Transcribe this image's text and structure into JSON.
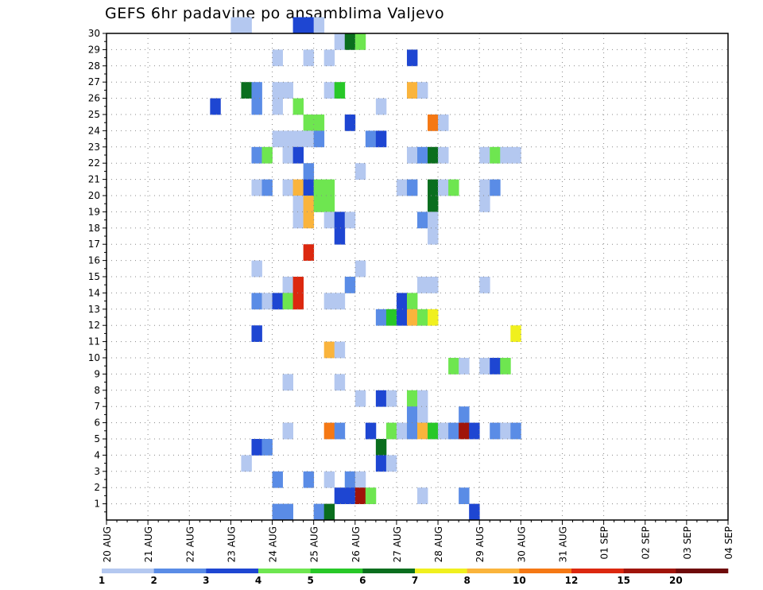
{
  "chart_data": {
    "type": "heatmap",
    "title": "GEFS 6hr padavine po ansamblima Valjevo",
    "x_ticks": [
      "20 AUG",
      "21 AUG",
      "22 AUG",
      "23 AUG",
      "24 AUG",
      "25 AUG",
      "26 AUG",
      "27 AUG",
      "28 AUG",
      "29 AUG",
      "30 AUG",
      "31 AUG",
      "01 SEP",
      "02 SEP",
      "03 SEP",
      "04 SEP"
    ],
    "y_ticks": [
      1,
      2,
      3,
      4,
      5,
      6,
      7,
      8,
      9,
      10,
      11,
      12,
      13,
      14,
      15,
      16,
      17,
      18,
      19,
      20,
      21,
      22,
      23,
      24,
      25,
      26,
      27,
      28,
      29,
      30
    ],
    "ylim": [
      0,
      30
    ],
    "xlim_days": [
      0,
      15
    ],
    "step_hours": 6,
    "grid": true,
    "legend_position": "bottom",
    "levels": [
      "1",
      "2",
      "3",
      "4",
      "5",
      "6",
      "7",
      "8",
      "10",
      "12",
      "15",
      "20"
    ],
    "colors": [
      "#b4c8f0",
      "#5a8ce6",
      "#1e46d2",
      "#6ee650",
      "#28c828",
      "#0a6e1e",
      "#f0f01e",
      "#fab43c",
      "#f57814",
      "#dc280f",
      "#a0140a",
      "#6e0a0a"
    ],
    "cells": [
      [
        30,
        12,
        0
      ],
      [
        30,
        13,
        0
      ],
      [
        30,
        18,
        2
      ],
      [
        30,
        19,
        2
      ],
      [
        30,
        20,
        0
      ],
      [
        29,
        22,
        0
      ],
      [
        29,
        23,
        5
      ],
      [
        29,
        24,
        3
      ],
      [
        28,
        16,
        0
      ],
      [
        28,
        19,
        0
      ],
      [
        28,
        21,
        0
      ],
      [
        28,
        29,
        2
      ],
      [
        26,
        13,
        5
      ],
      [
        26,
        14,
        1
      ],
      [
        26,
        16,
        0
      ],
      [
        26,
        17,
        0
      ],
      [
        26,
        21,
        0
      ],
      [
        26,
        22,
        4
      ],
      [
        26,
        29,
        7
      ],
      [
        26,
        30,
        0
      ],
      [
        25,
        10,
        2
      ],
      [
        25,
        14,
        1
      ],
      [
        25,
        16,
        0
      ],
      [
        25,
        18,
        3
      ],
      [
        25,
        26,
        0
      ],
      [
        24,
        19,
        3
      ],
      [
        24,
        20,
        3
      ],
      [
        24,
        23,
        2
      ],
      [
        24,
        31,
        8
      ],
      [
        24,
        32,
        0
      ],
      [
        23,
        16,
        0
      ],
      [
        23,
        17,
        0
      ],
      [
        23,
        18,
        0
      ],
      [
        23,
        19,
        0
      ],
      [
        23,
        20,
        1
      ],
      [
        23,
        25,
        1
      ],
      [
        23,
        26,
        2
      ],
      [
        22,
        14,
        1
      ],
      [
        22,
        15,
        3
      ],
      [
        22,
        17,
        0
      ],
      [
        22,
        18,
        2
      ],
      [
        22,
        29,
        0
      ],
      [
        22,
        30,
        1
      ],
      [
        22,
        31,
        5
      ],
      [
        22,
        32,
        0
      ],
      [
        22,
        36,
        0
      ],
      [
        22,
        37,
        3
      ],
      [
        22,
        38,
        0
      ],
      [
        22,
        39,
        0
      ],
      [
        21,
        19,
        1
      ],
      [
        21,
        24,
        0
      ],
      [
        20,
        14,
        0
      ],
      [
        20,
        15,
        1
      ],
      [
        20,
        17,
        0
      ],
      [
        20,
        18,
        7
      ],
      [
        20,
        19,
        2
      ],
      [
        20,
        20,
        3
      ],
      [
        20,
        21,
        3
      ],
      [
        20,
        28,
        0
      ],
      [
        20,
        29,
        1
      ],
      [
        20,
        31,
        5
      ],
      [
        20,
        32,
        0
      ],
      [
        20,
        33,
        3
      ],
      [
        20,
        36,
        0
      ],
      [
        20,
        37,
        1
      ],
      [
        19,
        18,
        0
      ],
      [
        19,
        19,
        7
      ],
      [
        19,
        20,
        3
      ],
      [
        19,
        21,
        3
      ],
      [
        19,
        31,
        5
      ],
      [
        19,
        36,
        0
      ],
      [
        18,
        18,
        0
      ],
      [
        18,
        19,
        7
      ],
      [
        18,
        21,
        0
      ],
      [
        18,
        22,
        2
      ],
      [
        18,
        23,
        0
      ],
      [
        18,
        30,
        1
      ],
      [
        18,
        31,
        0
      ],
      [
        17,
        22,
        2
      ],
      [
        17,
        31,
        0
      ],
      [
        16,
        19,
        9
      ],
      [
        15,
        14,
        0
      ],
      [
        15,
        24,
        0
      ],
      [
        14,
        17,
        0
      ],
      [
        14,
        18,
        9
      ],
      [
        14,
        23,
        1
      ],
      [
        14,
        30,
        0
      ],
      [
        14,
        31,
        0
      ],
      [
        14,
        36,
        0
      ],
      [
        13,
        14,
        1
      ],
      [
        13,
        15,
        0
      ],
      [
        13,
        16,
        2
      ],
      [
        13,
        17,
        3
      ],
      [
        13,
        18,
        9
      ],
      [
        13,
        21,
        0
      ],
      [
        13,
        22,
        0
      ],
      [
        13,
        28,
        2
      ],
      [
        13,
        29,
        3
      ],
      [
        12,
        26,
        1
      ],
      [
        12,
        27,
        4
      ],
      [
        12,
        28,
        2
      ],
      [
        12,
        29,
        7
      ],
      [
        12,
        30,
        3
      ],
      [
        12,
        31,
        6
      ],
      [
        11,
        14,
        2
      ],
      [
        11,
        39,
        6
      ],
      [
        10,
        21,
        7
      ],
      [
        10,
        22,
        0
      ],
      [
        9,
        33,
        3
      ],
      [
        9,
        34,
        0
      ],
      [
        9,
        36,
        0
      ],
      [
        9,
        37,
        2
      ],
      [
        9,
        38,
        3
      ],
      [
        8,
        17,
        0
      ],
      [
        8,
        22,
        0
      ],
      [
        7,
        24,
        0
      ],
      [
        7,
        26,
        2
      ],
      [
        7,
        27,
        0
      ],
      [
        7,
        29,
        3
      ],
      [
        7,
        30,
        0
      ],
      [
        6,
        29,
        1
      ],
      [
        6,
        30,
        0
      ],
      [
        6,
        34,
        1
      ],
      [
        5,
        17,
        0
      ],
      [
        5,
        21,
        8
      ],
      [
        5,
        22,
        1
      ],
      [
        5,
        25,
        2
      ],
      [
        5,
        27,
        3
      ],
      [
        5,
        28,
        0
      ],
      [
        5,
        29,
        1
      ],
      [
        5,
        30,
        7
      ],
      [
        5,
        31,
        4
      ],
      [
        5,
        32,
        0
      ],
      [
        5,
        33,
        1
      ],
      [
        5,
        34,
        10
      ],
      [
        5,
        35,
        2
      ],
      [
        5,
        37,
        1
      ],
      [
        5,
        38,
        0
      ],
      [
        5,
        39,
        1
      ],
      [
        4,
        14,
        2
      ],
      [
        4,
        15,
        1
      ],
      [
        4,
        26,
        5
      ],
      [
        3,
        13,
        0
      ],
      [
        3,
        26,
        2
      ],
      [
        3,
        27,
        0
      ],
      [
        2,
        16,
        1
      ],
      [
        2,
        19,
        1
      ],
      [
        2,
        21,
        0
      ],
      [
        2,
        23,
        1
      ],
      [
        2,
        24,
        0
      ],
      [
        1,
        22,
        2
      ],
      [
        1,
        23,
        2
      ],
      [
        1,
        24,
        10
      ],
      [
        1,
        25,
        3
      ],
      [
        1,
        30,
        0
      ],
      [
        1,
        34,
        1
      ],
      [
        0,
        16,
        1
      ],
      [
        0,
        17,
        1
      ],
      [
        0,
        20,
        1
      ],
      [
        0,
        21,
        5
      ],
      [
        0,
        35,
        2
      ]
    ]
  }
}
